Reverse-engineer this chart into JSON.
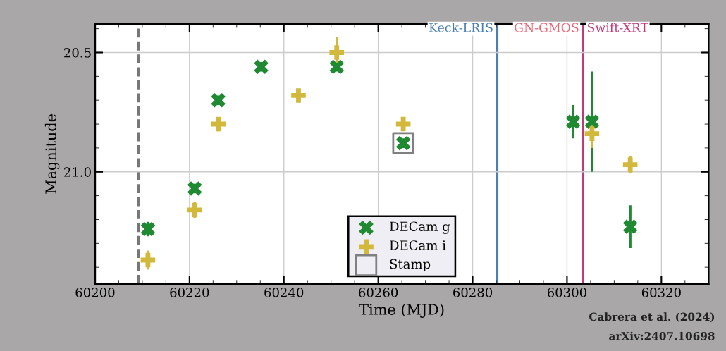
{
  "chart_data": {
    "type": "scatter",
    "xlabel": "Time (MJD)",
    "ylabel": "Magnitude",
    "xlim": [
      60200,
      60330
    ],
    "xticks": [
      60200,
      60220,
      60240,
      60260,
      60280,
      60300,
      60320
    ],
    "ylim": [
      21.47,
      20.38
    ],
    "yticks": [
      {
        "value": 20.5,
        "label": "20.5"
      },
      {
        "value": 21.0,
        "label": "21.0"
      }
    ],
    "grid": true,
    "legend": "bottom",
    "series": [
      {
        "name": "DECam g",
        "color": "#1f8a32",
        "marker": "cross",
        "x": [
          60211.2,
          60221.1,
          60226.1,
          60235.2,
          60251.2,
          60265.3,
          60301.3,
          60305.3,
          60313.4
        ],
        "values": [
          21.24,
          21.07,
          20.7,
          20.56,
          20.56,
          20.88,
          20.79,
          20.79,
          21.23
        ],
        "errors": [
          0.03,
          0.02,
          0.02,
          0.02,
          0.02,
          0.02,
          0.07,
          0.21,
          0.09
        ]
      },
      {
        "name": "DECam i",
        "color": "#d2b93c",
        "marker": "plus",
        "x": [
          60211.2,
          60221.1,
          60226.1,
          60243.1,
          60251.2,
          60265.3,
          60305.3,
          60313.4
        ],
        "values": [
          21.37,
          21.16,
          20.8,
          20.68,
          20.5,
          20.8,
          20.84,
          20.97
        ],
        "errors": [
          0.04,
          0.035,
          0.03,
          0.02,
          0.066,
          0.02,
          0.06,
          0.035
        ]
      },
      {
        "name": "Stamp",
        "color": "#808080",
        "marker": "square",
        "x": [
          60265.3
        ],
        "values": [
          20.88
        ]
      }
    ],
    "ref_lines": [
      {
        "axis": "x",
        "value": 60209.2,
        "label": null,
        "color": "#777777",
        "line_style": "dashed"
      },
      {
        "axis": "x",
        "value": 60285.2,
        "label": "Keck-LRIS",
        "color": "#4a7fb5",
        "line_style": "solid"
      },
      {
        "axis": "x",
        "value": 60303.4,
        "label": "GN-GMOS",
        "color": "#ee6677",
        "line_style": "solid"
      },
      {
        "axis": "x",
        "value": 60303.4,
        "label": "Swift-XRT",
        "color": "#c03a7a",
        "line_style": "solid"
      }
    ],
    "annotations": [
      "Cabrera et al. (2024)",
      "arXiv:2407.10698"
    ]
  }
}
